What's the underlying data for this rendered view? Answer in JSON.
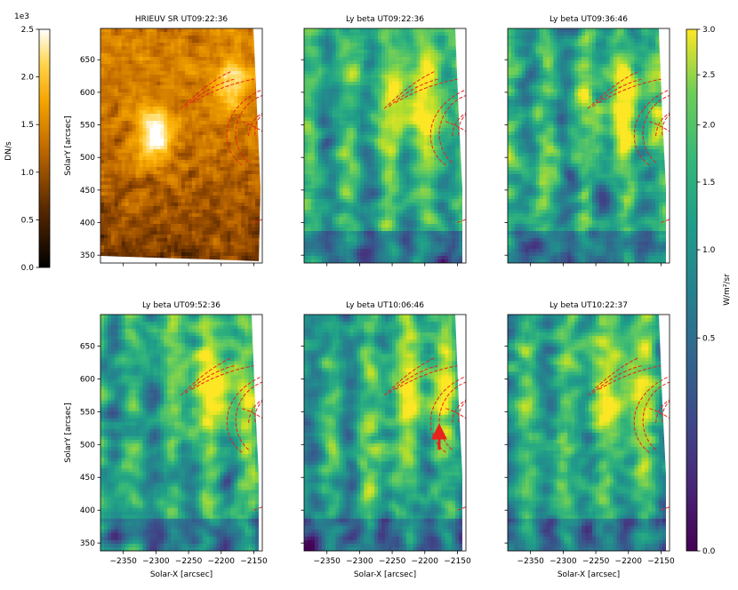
{
  "chart_data": [
    {
      "type": "heatmap",
      "title": "HRIEUV SR UT09:22:36",
      "xlabel": "",
      "ylabel": "SolarY [arcsec]",
      "xlim": [
        -2385,
        -2137
      ],
      "ylim": [
        338,
        698
      ],
      "xticks": [
        "-2350",
        "-2300",
        "-2250",
        "-2200",
        "-2150"
      ],
      "yticks": [
        "350",
        "400",
        "450",
        "500",
        "550",
        "600",
        "650"
      ],
      "colormap": "afmhot"
    },
    {
      "type": "heatmap",
      "title": "Ly beta UT09:22:36",
      "xlabel": "",
      "ylabel": "",
      "xlim": [
        -2385,
        -2137
      ],
      "ylim": [
        338,
        698
      ],
      "xticks": [
        "-2350",
        "-2300",
        "-2250",
        "-2200",
        "-2150"
      ],
      "yticks": [
        "350",
        "400",
        "450",
        "500",
        "550",
        "600",
        "650"
      ],
      "colormap": "viridis"
    },
    {
      "type": "heatmap",
      "title": "Ly beta UT09:36:46",
      "xlabel": "",
      "ylabel": "",
      "xlim": [
        -2385,
        -2137
      ],
      "ylim": [
        338,
        698
      ],
      "xticks": [
        "-2350",
        "-2300",
        "-2250",
        "-2200",
        "-2150"
      ],
      "yticks": [
        "350",
        "400",
        "450",
        "500",
        "550",
        "600",
        "650"
      ],
      "colormap": "viridis"
    },
    {
      "type": "heatmap",
      "title": "Ly beta UT09:52:36",
      "xlabel": "Solar-X [arcsec]",
      "ylabel": "SolarY [arcsec]",
      "xlim": [
        -2385,
        -2137
      ],
      "ylim": [
        338,
        698
      ],
      "xticks": [
        "-2350",
        "-2300",
        "-2250",
        "-2200",
        "-2150"
      ],
      "yticks": [
        "350",
        "400",
        "450",
        "500",
        "550",
        "600",
        "650"
      ],
      "colormap": "viridis"
    },
    {
      "type": "heatmap",
      "title": "Ly beta UT10:06:46",
      "xlabel": "Solar-X [arcsec]",
      "ylabel": "",
      "xlim": [
        -2385,
        -2137
      ],
      "ylim": [
        338,
        698
      ],
      "xticks": [
        "-2350",
        "-2300",
        "-2250",
        "-2200",
        "-2150"
      ],
      "yticks": [
        "350",
        "400",
        "450",
        "500",
        "550",
        "600",
        "650"
      ],
      "colormap": "viridis",
      "annotation": "red arrow"
    },
    {
      "type": "heatmap",
      "title": "Ly beta UT10:22:37",
      "xlabel": "Solar-X [arcsec]",
      "ylabel": "",
      "xlim": [
        -2385,
        -2137
      ],
      "ylim": [
        338,
        698
      ],
      "xticks": [
        "-2350",
        "-2300",
        "-2250",
        "-2200",
        "-2150"
      ],
      "yticks": [
        "350",
        "400",
        "450",
        "500",
        "550",
        "600",
        "650"
      ],
      "colormap": "viridis"
    }
  ],
  "colorbars": {
    "left": {
      "label": "DN/s",
      "offset_label": "1e3",
      "ticks": [
        "0.0",
        "0.5",
        "1.0",
        "1.5",
        "2.0",
        "2.5"
      ],
      "range": [
        0,
        2.5
      ],
      "colormap": "afmhot"
    },
    "right": {
      "label": "W/m²/sr",
      "ticks": [
        "0.0",
        "0.5",
        "1.0",
        "1.5",
        "2.0",
        "2.5",
        "3.0"
      ],
      "range": [
        0,
        3.0
      ],
      "scale": "sqrt",
      "colormap": "viridis"
    }
  },
  "loops": [
    [
      [
        -2262,
        575
      ],
      [
        -2240,
        596
      ],
      [
        -2215,
        618
      ],
      [
        -2185,
        632
      ]
    ],
    [
      [
        -2255,
        578
      ],
      [
        -2230,
        600
      ],
      [
        -2205,
        614
      ],
      [
        -2180,
        620
      ]
    ],
    [
      [
        -2245,
        584
      ],
      [
        -2200,
        611
      ],
      [
        -2150,
        620
      ]
    ],
    [
      [
        -2168,
        488
      ],
      [
        -2205,
        515
      ],
      [
        -2200,
        577
      ],
      [
        -2137,
        604
      ]
    ],
    [
      [
        -2158,
        492
      ],
      [
        -2192,
        522
      ],
      [
        -2180,
        579
      ],
      [
        -2137,
        595
      ]
    ],
    [
      [
        -2158,
        533
      ],
      [
        -2156,
        557
      ],
      [
        -2137,
        568
      ]
    ],
    [
      [
        -2148,
        534
      ],
      [
        -2150,
        553
      ],
      [
        -2137,
        566
      ]
    ],
    [
      [
        -2168,
        555
      ],
      [
        -2152,
        550
      ],
      [
        -2137,
        540
      ]
    ],
    [
      [
        -2150,
        400
      ],
      [
        -2137,
        405
      ]
    ]
  ],
  "colors": {
    "loop": "#e8231e",
    "arrow": "#e8231e",
    "blank": "#ffffff"
  }
}
